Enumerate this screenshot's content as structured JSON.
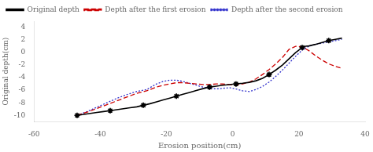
{
  "chart_data": {
    "type": "line",
    "xlabel": "Erosion position(cm)",
    "ylabel": "Original depth(cm)",
    "xlim": [
      -60,
      40
    ],
    "ylim": [
      -11,
      5
    ],
    "xticks": [
      -60,
      -40,
      -20,
      0,
      20,
      40
    ],
    "yticks": [
      -10,
      -8,
      -6,
      -4,
      -2,
      0,
      2,
      4
    ],
    "grid": false,
    "legend": "upper left",
    "series": [
      {
        "name": "Original depth",
        "color": "#000000",
        "marker": "star",
        "line_style": "solid",
        "x": [
          -47,
          -45,
          -43,
          -41,
          -39,
          -37,
          -35,
          -33,
          -31,
          -29,
          -27,
          -25,
          -23,
          -21,
          -19,
          -17,
          -15,
          -13,
          -11,
          -9,
          -7,
          -5,
          -3,
          -1,
          0,
          1,
          3,
          5,
          7,
          9,
          11,
          13,
          15,
          17,
          19,
          21,
          22,
          23,
          25,
          27,
          29,
          31,
          33
        ],
        "values": [
          -10.0,
          -9.85,
          -9.7,
          -9.55,
          -9.4,
          -9.25,
          -9.1,
          -8.95,
          -8.8,
          -8.65,
          -8.4,
          -8.15,
          -7.85,
          -7.55,
          -7.25,
          -6.95,
          -6.65,
          -6.35,
          -6.05,
          -5.75,
          -5.5,
          -5.35,
          -5.2,
          -5.1,
          -5.05,
          -5.0,
          -4.9,
          -4.75,
          -4.5,
          -4.1,
          -3.5,
          -2.8,
          -2.0,
          -1.0,
          0.0,
          0.8,
          1.0,
          1.05,
          1.3,
          1.6,
          1.9,
          2.1,
          2.3
        ]
      },
      {
        "name": "Depth after the first erosion",
        "color": "#cc0000",
        "line_style": "dashed",
        "x": [
          -47,
          -44,
          -41,
          -38,
          -35,
          -32,
          -29,
          -26,
          -23,
          -21,
          -19,
          -17,
          -15,
          -13,
          -11,
          -9,
          -7,
          -5,
          -3,
          -1,
          1,
          3,
          5,
          7,
          9,
          11,
          13,
          15,
          17,
          19,
          21,
          23,
          25,
          27,
          29,
          31,
          33
        ],
        "values": [
          -10.0,
          -9.5,
          -8.9,
          -8.3,
          -7.7,
          -7.1,
          -6.5,
          -6.1,
          -5.5,
          -5.2,
          -5.0,
          -4.8,
          -4.8,
          -4.9,
          -5.0,
          -5.1,
          -5.1,
          -5.0,
          -5.0,
          -5.1,
          -5.15,
          -5.0,
          -4.7,
          -4.2,
          -3.5,
          -2.7,
          -1.8,
          -0.8,
          0.5,
          1.0,
          0.9,
          0.3,
          -0.5,
          -1.2,
          -1.8,
          -2.2,
          -2.5
        ]
      },
      {
        "name": "Depth after the second erosion",
        "color": "#3333cc",
        "line_style": "dotted",
        "x": [
          -47,
          -44,
          -41,
          -38,
          -35,
          -32,
          -29,
          -26,
          -23,
          -21,
          -19,
          -17,
          -15,
          -13,
          -11,
          -9,
          -7,
          -5,
          -3,
          -1,
          1,
          3,
          5,
          7,
          9,
          11,
          13,
          15,
          17,
          19,
          21,
          23,
          25,
          27,
          29,
          31,
          33
        ],
        "values": [
          -10.0,
          -9.4,
          -8.7,
          -8.0,
          -7.3,
          -6.7,
          -6.2,
          -5.9,
          -5.0,
          -4.6,
          -4.4,
          -4.4,
          -4.6,
          -4.9,
          -5.2,
          -5.5,
          -5.7,
          -5.8,
          -5.7,
          -5.6,
          -5.8,
          -6.1,
          -6.2,
          -5.9,
          -5.4,
          -4.7,
          -3.8,
          -2.8,
          -1.7,
          -0.6,
          0.4,
          1.0,
          1.3,
          1.5,
          1.7,
          1.9,
          2.1
        ]
      }
    ]
  }
}
